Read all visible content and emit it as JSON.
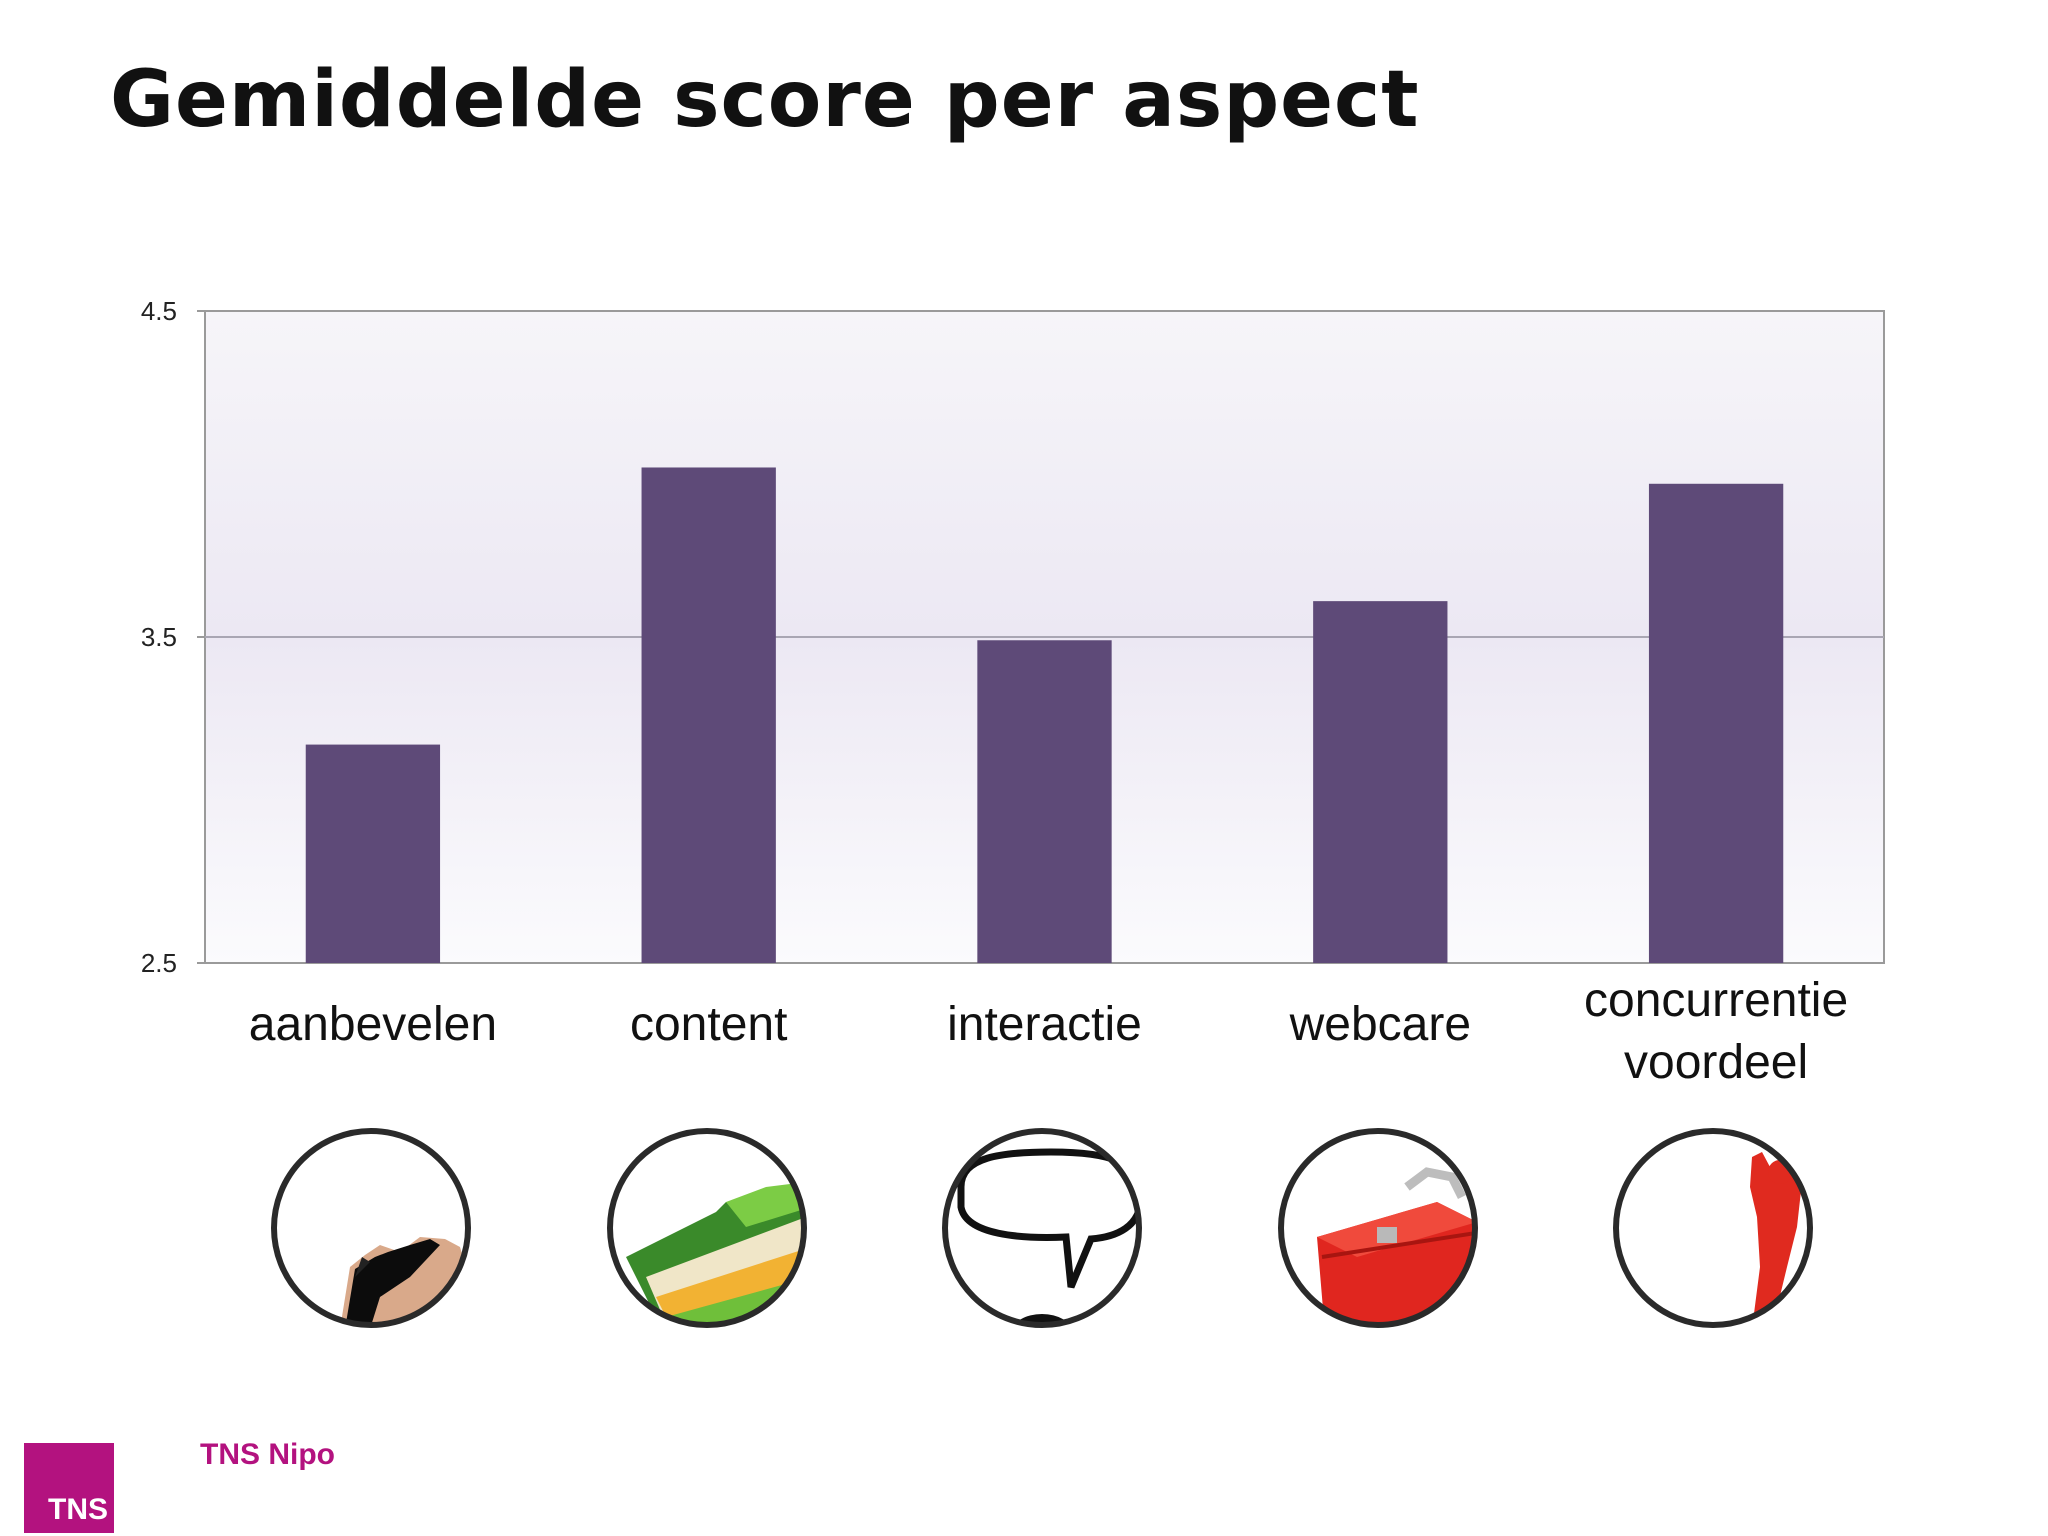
{
  "slide": {
    "title": "Gemiddelde score per aspect"
  },
  "chart_data": {
    "type": "bar",
    "title": "",
    "xlabel": "",
    "ylabel": "",
    "categories": [
      "aanbevelen",
      "content",
      "interactie",
      "webcare",
      "concurrentie voordeel"
    ],
    "category_lines": [
      [
        "aanbevelen"
      ],
      [
        "content"
      ],
      [
        "interactie"
      ],
      [
        "webcare"
      ],
      [
        "concurrentie",
        "voordeel"
      ]
    ],
    "values": [
      3.17,
      4.02,
      3.49,
      3.61,
      3.97
    ],
    "ylim": [
      2.5,
      4.5
    ],
    "yticks": [
      "2.5",
      "3.5",
      "4.5"
    ],
    "bar_color": "#5e4a78",
    "grid": true,
    "legend": "none"
  },
  "icons": [
    {
      "name": "torn-paper-icon"
    },
    {
      "name": "folder-icon"
    },
    {
      "name": "speech-bubble-icon"
    },
    {
      "name": "toolbox-icon"
    },
    {
      "name": "red-figure-icon"
    }
  ],
  "footer": {
    "logo_text": "TNS",
    "brand": "TNS Nipo",
    "brand_color": "#b3127f"
  }
}
